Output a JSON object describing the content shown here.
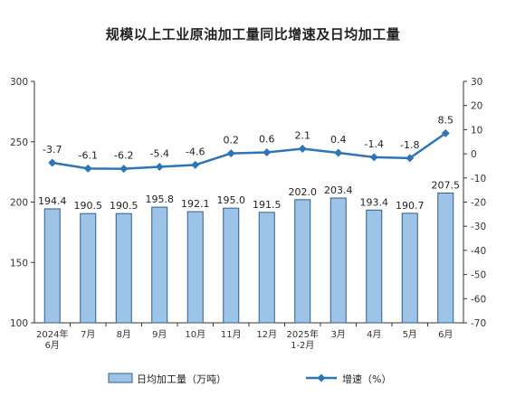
{
  "chart_data": {
    "type": "bar+line",
    "title": "规模以上工业原油加工量同比增速及日均加工量",
    "categories": [
      [
        "2024年",
        "6月"
      ],
      [
        "7月"
      ],
      [
        "8月"
      ],
      [
        "9月"
      ],
      [
        "10月"
      ],
      [
        "11月"
      ],
      [
        "12月"
      ],
      [
        "2025年",
        "1-2月"
      ],
      [
        "3月"
      ],
      [
        "4月"
      ],
      [
        "5月"
      ],
      [
        "6月"
      ]
    ],
    "series": [
      {
        "name": "日均加工量（万吨）",
        "type": "bar",
        "axis": "left",
        "values": [
          194.4,
          190.5,
          190.5,
          195.8,
          192.1,
          195.0,
          191.5,
          202.0,
          203.4,
          193.4,
          190.7,
          207.5
        ],
        "labels": [
          "194.4",
          "190.5",
          "190.5",
          "195.8",
          "192.1",
          "195.0",
          "191.5",
          "202.0",
          "203.4",
          "193.4",
          "190.7",
          "207.5"
        ]
      },
      {
        "name": "增速（%）",
        "type": "line",
        "axis": "right",
        "values": [
          -3.7,
          -6.1,
          -6.2,
          -5.4,
          -4.6,
          0.2,
          0.6,
          2.1,
          0.4,
          -1.4,
          -1.8,
          8.5
        ],
        "labels": [
          "-3.7",
          "-6.1",
          "-6.2",
          "-5.4",
          "-4.6",
          "0.2",
          "0.6",
          "2.1",
          "0.4",
          "-1.4",
          "-1.8",
          "8.5"
        ]
      }
    ],
    "y_left": {
      "min": 100,
      "max": 300,
      "ticks": [
        "100",
        "150",
        "200",
        "250",
        "300"
      ]
    },
    "y_right": {
      "min": -70,
      "max": 30,
      "ticks": [
        "-70",
        "-60",
        "-50",
        "-40",
        "-30",
        "-20",
        "-10",
        "0",
        "10",
        "20",
        "30"
      ]
    },
    "grid": false,
    "legend_position": "bottom",
    "colors": {
      "bar_fill": "#9dc3e6",
      "bar_stroke": "#2e5f8a",
      "line": "#2e75b6"
    }
  }
}
